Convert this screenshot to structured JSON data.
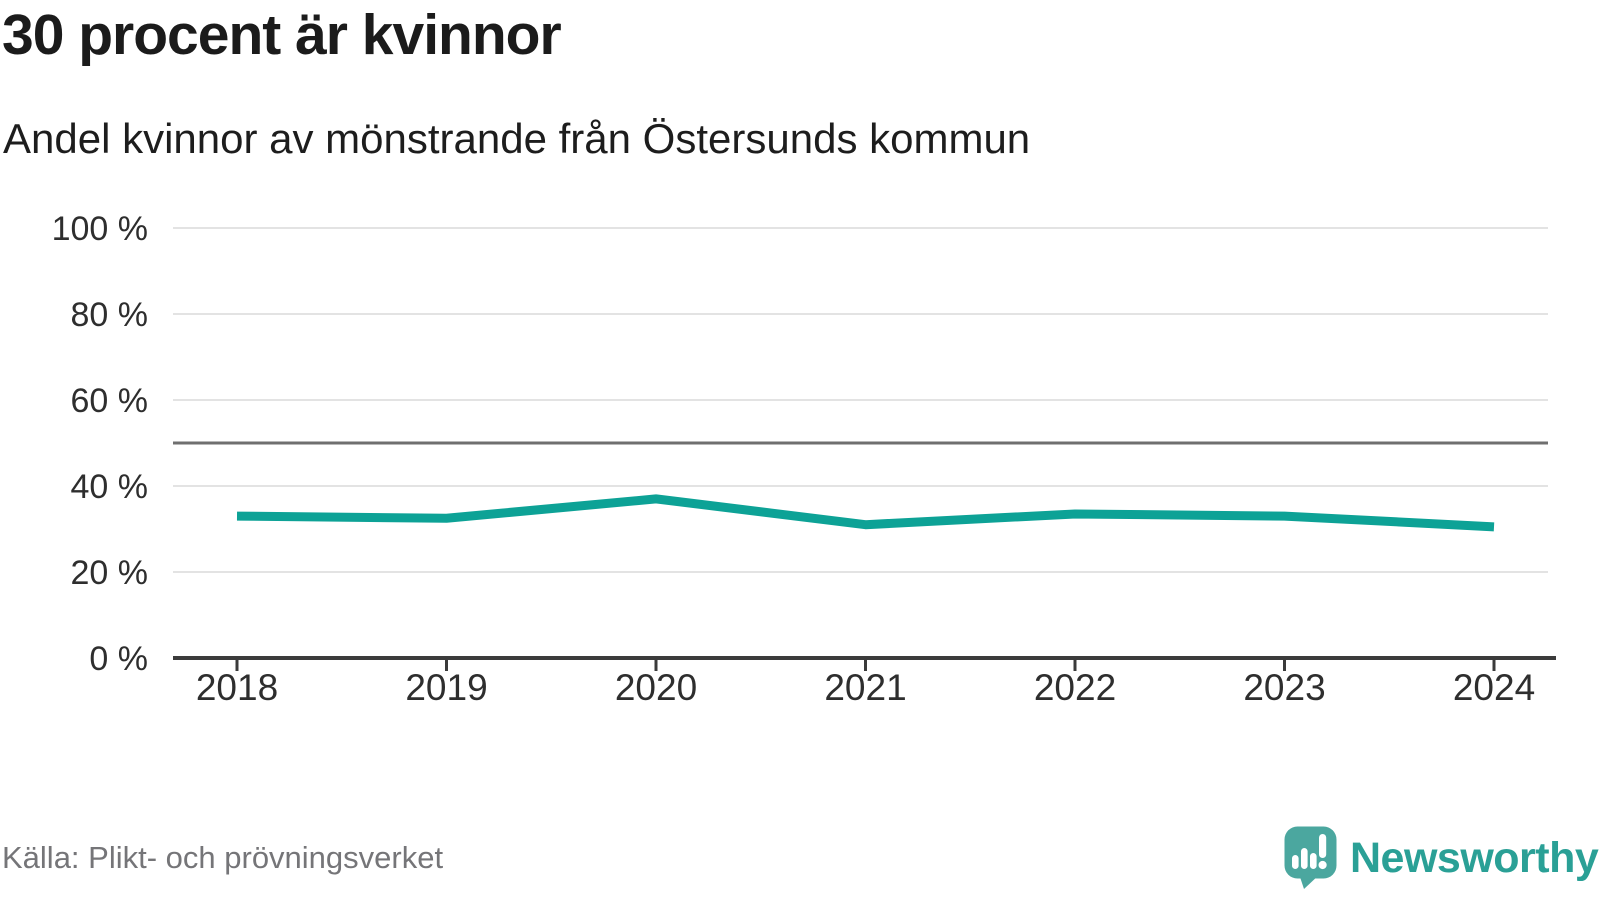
{
  "header": {
    "title": "30 procent är kvinnor",
    "subtitle": "Andel kvinnor av mönstrande från Östersunds kommun"
  },
  "footer": {
    "source": "Källa: Plikt- och prövningsverket",
    "logo_text": "Newsworthy"
  },
  "colors": {
    "line": "#0DA296",
    "reference_line": "#6F6F6F",
    "gridline": "#E3E3E3",
    "axis": "#3B3B3B",
    "tick_label": "#2E2E2E",
    "title_text": "#1B1B1B",
    "source_text": "#757578",
    "logo_icon": "#4BA79F",
    "logo_text": "#2AA096"
  },
  "chart_data": {
    "type": "line",
    "title": "30 procent är kvinnor",
    "subtitle": "Andel kvinnor av mönstrande från Östersunds kommun",
    "categories": [
      "2018",
      "2019",
      "2020",
      "2021",
      "2022",
      "2023",
      "2024"
    ],
    "series": [
      {
        "name": "Andel kvinnor av mönstrande",
        "color": "#0DA296",
        "values": [
          33,
          32.5,
          37,
          31,
          33.5,
          33,
          30.5
        ]
      }
    ],
    "unit": "%",
    "ylim": [
      0,
      100
    ],
    "y_ticks": [
      {
        "label": "100 %",
        "value": 100
      },
      {
        "label": "80 %",
        "value": 80
      },
      {
        "label": "60 %",
        "value": 60
      },
      {
        "label": "40 %",
        "value": 40
      },
      {
        "label": "20 %",
        "value": 20
      },
      {
        "label": "0 %",
        "value": 0
      }
    ],
    "reference_line": {
      "value": 50
    },
    "grid": "horizontal",
    "legend": "none",
    "markers": "none"
  }
}
